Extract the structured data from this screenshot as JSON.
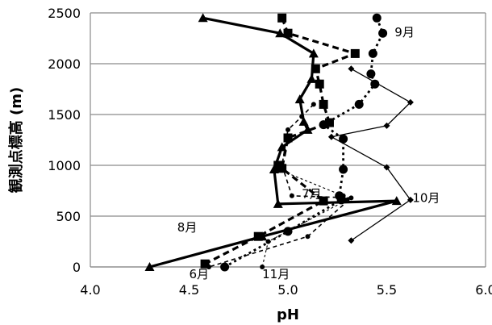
{
  "chart_data": {
    "type": "line",
    "xlabel": "pH",
    "ylabel": "観測点標高 (m)",
    "xlim": [
      4.0,
      6.0
    ],
    "ylim": [
      0,
      2500
    ],
    "xticks": [
      "4.0",
      "4.5",
      "5.0",
      "5.5",
      "6.0"
    ],
    "yticks": [
      "0",
      "500",
      "1000",
      "1500",
      "2000",
      "2500"
    ],
    "grid": "horizontal",
    "annotations": [
      {
        "text": "6月",
        "x": 4.5,
        "y": -110
      },
      {
        "text": "7月",
        "x": 5.07,
        "y": 680
      },
      {
        "text": "8月",
        "x": 4.44,
        "y": 350
      },
      {
        "text": "9月",
        "x": 5.54,
        "y": 2270
      },
      {
        "text": "10月",
        "x": 5.63,
        "y": 640
      },
      {
        "text": "11月",
        "x": 4.87,
        "y": -110
      }
    ],
    "series": [
      {
        "id": "aug",
        "label_ref": "8月",
        "marker": "triangle",
        "dash": "solid",
        "width": 3.2,
        "x": [
          4.57,
          4.96,
          5.13,
          5.12,
          5.06,
          5.08,
          5.1,
          4.97,
          4.93,
          4.95,
          5.55,
          4.87,
          4.3
        ],
        "y": [
          2450,
          2300,
          2100,
          1850,
          1650,
          1430,
          1350,
          1180,
          960,
          620,
          650,
          300,
          0
        ]
      },
      {
        "id": "jun",
        "label_ref": "6月",
        "marker": "square",
        "dash": "8,5",
        "width": 3.2,
        "x": [
          4.97,
          5.0,
          5.34,
          5.14,
          5.16,
          5.18,
          5.21,
          5.0,
          4.97,
          4.95,
          5.18,
          4.85,
          4.58
        ],
        "y": [
          2450,
          2300,
          2100,
          1950,
          1800,
          1600,
          1420,
          1270,
          970,
          1000,
          650,
          300,
          30
        ]
      },
      {
        "id": "sep",
        "label_ref": "9月",
        "marker": "circle",
        "dash": "3,4",
        "width": 2.8,
        "x": [
          5.45,
          5.48,
          5.43,
          5.42,
          5.44,
          5.36,
          5.18,
          5.28,
          5.28,
          5.26,
          5.27,
          5.0,
          4.68
        ],
        "y": [
          2450,
          2300,
          2100,
          1900,
          1800,
          1600,
          1400,
          1260,
          960,
          700,
          660,
          350,
          0
        ]
      },
      {
        "id": "oct",
        "label_ref": "10月",
        "marker": "diamond",
        "dash": "solid",
        "width": 1.3,
        "x": [
          5.32,
          5.62,
          5.5,
          5.22,
          5.5,
          5.62,
          5.32
        ],
        "y": [
          1950,
          1620,
          1390,
          1280,
          980,
          660,
          260
        ]
      },
      {
        "id": "jul",
        "label_ref": "7月",
        "marker": "small-circle",
        "dash": "5,4",
        "width": 1.6,
        "x": [
          5.13,
          5.07,
          5.0,
          4.97,
          5.02,
          5.32,
          5.1,
          4.6
        ],
        "y": [
          1600,
          1480,
          1350,
          1000,
          700,
          680,
          300,
          0
        ]
      },
      {
        "id": "nov",
        "label_ref": "11月",
        "marker": "small-circle",
        "dash": "3,3",
        "width": 1.1,
        "x": [
          4.95,
          5.28,
          5.3,
          4.9,
          4.87
        ],
        "y": [
          960,
          700,
          660,
          250,
          0
        ]
      }
    ]
  }
}
